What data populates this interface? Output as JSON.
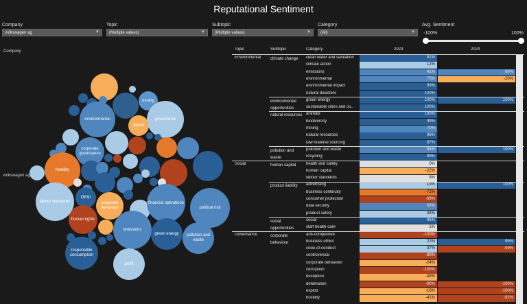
{
  "title": "Reputational Sentiment",
  "filters": [
    {
      "label": "Company",
      "value": "volkswagen ag"
    },
    {
      "label": "Topic",
      "value": "(Multiple values)"
    },
    {
      "label": "Subtopic",
      "value": "(Multiple values)"
    },
    {
      "label": "Category",
      "value": "(All)"
    }
  ],
  "sentiment_slider": {
    "label": "Avg. Sentiment",
    "min_label": "-100%",
    "max_label": "100%",
    "min_value": -100,
    "max_value": 100
  },
  "bubble_chart": {
    "title": "Company",
    "company_label": "volkswagen ag",
    "labels": {
      "mining": "mining",
      "environmental": "environmental",
      "exploit": "exploit",
      "governance": "governance",
      "corporate_governance": "corporate governance",
      "hostility": "hostility",
      "labour_standards": "labour standards",
      "dei": "DE&I",
      "corporate_behaviour": "corporate behaviour",
      "financial_operations": "financial operations",
      "political_risk": "political risk",
      "human_rights": "human rights",
      "emissions": "emissions",
      "green_energy": "green energy",
      "pollution_and_waste": "pollution and waste",
      "responsible_consumption": "responsible consumption",
      "profit": "profit"
    }
  },
  "table": {
    "headers": {
      "topic": "Topic",
      "subtopic": "Subtopic",
      "category": "Category",
      "y2023": "2023",
      "y2024": "2024"
    },
    "rows": [
      {
        "topic": "Environmental",
        "subtopic": "climate change",
        "category": "clean water and sanitation",
        "v2023": "91%",
        "v2024": ""
      },
      {
        "topic": "",
        "subtopic": "",
        "category": "climate action",
        "v2023": "12%",
        "v2024": ""
      },
      {
        "topic": "",
        "subtopic": "",
        "category": "emissions",
        "v2023": "41%",
        "v2024": "60%"
      },
      {
        "topic": "",
        "subtopic": "",
        "category": "environmental",
        "v2023": "75%",
        "v2024": "-20%"
      },
      {
        "topic": "",
        "subtopic": "",
        "category": "environmental impact",
        "v2023": "99%",
        "v2024": ""
      },
      {
        "topic": "",
        "subtopic": "",
        "category": "natural disasters",
        "v2023": "100%",
        "v2024": ""
      },
      {
        "topic": "",
        "subtopic": "environmental opportunities",
        "category": "green energy",
        "v2023": "100%",
        "v2024": "100%"
      },
      {
        "topic": "",
        "subtopic": "",
        "category": "sustainable cities and co..",
        "v2023": "100%",
        "v2024": ""
      },
      {
        "topic": "",
        "subtopic": "natural resources",
        "category": "animals",
        "v2023": "100%",
        "v2024": ""
      },
      {
        "topic": "",
        "subtopic": "",
        "category": "biodiversity",
        "v2023": "99%",
        "v2024": ""
      },
      {
        "topic": "",
        "subtopic": "",
        "category": "mining",
        "v2023": "70%",
        "v2024": ""
      },
      {
        "topic": "",
        "subtopic": "",
        "category": "natural resources",
        "v2023": "96%",
        "v2024": ""
      },
      {
        "topic": "",
        "subtopic": "",
        "category": "raw material sourcing",
        "v2023": "87%",
        "v2024": ""
      },
      {
        "topic": "",
        "subtopic": "pollution and waste",
        "category": "pollution and waste",
        "v2023": "64%",
        "v2024": "100%"
      },
      {
        "topic": "",
        "subtopic": "",
        "category": "recycling",
        "v2023": "99%",
        "v2024": ""
      },
      {
        "topic": "Social",
        "subtopic": "human capital",
        "category": "health and safety",
        "v2023": "0%",
        "v2024": ""
      },
      {
        "topic": "",
        "subtopic": "",
        "category": "human capital",
        "v2023": "-22%",
        "v2024": ""
      },
      {
        "topic": "",
        "subtopic": "",
        "category": "labour standards",
        "v2023": "8%",
        "v2024": ""
      },
      {
        "topic": "",
        "subtopic": "product liability",
        "category": "advertising",
        "v2023": "19%",
        "v2024": "100%"
      },
      {
        "topic": "",
        "subtopic": "",
        "category": "business continuity",
        "v2023": "-72%",
        "v2024": ""
      },
      {
        "topic": "",
        "subtopic": "",
        "category": "consumer protection",
        "v2023": "-99%",
        "v2024": ""
      },
      {
        "topic": "",
        "subtopic": "",
        "category": "data security",
        "v2023": "63%",
        "v2024": ""
      },
      {
        "topic": "",
        "subtopic": "",
        "category": "product safety",
        "v2023": "34%",
        "v2024": ""
      },
      {
        "topic": "",
        "subtopic": "social opportunities",
        "category": "social",
        "v2023": "96%",
        "v2024": ""
      },
      {
        "topic": "",
        "subtopic": "",
        "category": "staff health-care",
        "v2023": "1%",
        "v2024": ""
      },
      {
        "topic": "Governance",
        "subtopic": "corporate behaviour",
        "category": "anti-competitive",
        "v2023": "-100%",
        "v2024": ""
      },
      {
        "topic": "",
        "subtopic": "",
        "category": "business ethics",
        "v2023": "22%",
        "v2024": "99%"
      },
      {
        "topic": "",
        "subtopic": "",
        "category": "code-of-conduct",
        "v2023": "37%",
        "v2024": "-99%"
      },
      {
        "topic": "",
        "subtopic": "",
        "category": "controversial",
        "v2023": "-89%",
        "v2024": ""
      },
      {
        "topic": "",
        "subtopic": "",
        "category": "corporate behaviour",
        "v2023": "-24%",
        "v2024": ""
      },
      {
        "topic": "",
        "subtopic": "",
        "category": "corruption",
        "v2023": "-100%",
        "v2024": ""
      },
      {
        "topic": "",
        "subtopic": "",
        "category": "deception",
        "v2023": "-49%",
        "v2024": ""
      },
      {
        "topic": "",
        "subtopic": "",
        "category": "defamation",
        "v2023": "-90%",
        "v2024": "-100%"
      },
      {
        "topic": "",
        "subtopic": "",
        "category": "exploit",
        "v2023": "-16%",
        "v2024": "-100%"
      },
      {
        "topic": "",
        "subtopic": "",
        "category": "hostility",
        "v2023": "-41%",
        "v2024": "-92%"
      }
    ]
  },
  "colors": {
    "positive_strong": "#2a5f96",
    "positive_mid": "#4f86bd",
    "positive_light": "#a9cbe6",
    "neutral": "#e0e0e0",
    "negative_light": "#f7ad5a",
    "negative_mid": "#e77a2a",
    "negative_strong": "#b0431e"
  }
}
